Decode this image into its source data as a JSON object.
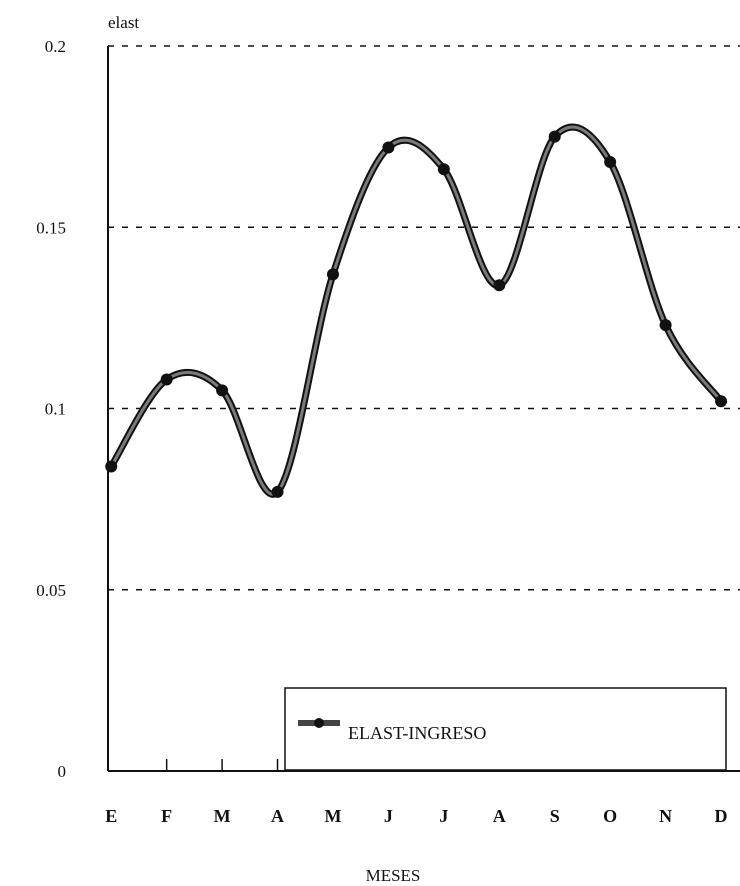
{
  "chart_data": {
    "type": "line",
    "ylabel": "elast",
    "xlabel": "MESES",
    "categories": [
      "E",
      "F",
      "M",
      "A",
      "M",
      "J",
      "J",
      "A",
      "S",
      "O",
      "N",
      "D"
    ],
    "yticks": [
      "0",
      "0.05",
      "0.1",
      "0.15",
      "0.2"
    ],
    "ylim": [
      0,
      0.2
    ],
    "grid": "horizontal dashed",
    "legend_position": "bottom-right",
    "series": [
      {
        "name": "ELAST-INGRESO",
        "values": [
          0.084,
          0.108,
          0.105,
          0.077,
          0.137,
          0.172,
          0.166,
          0.134,
          0.175,
          0.168,
          0.123,
          0.102
        ]
      }
    ]
  }
}
